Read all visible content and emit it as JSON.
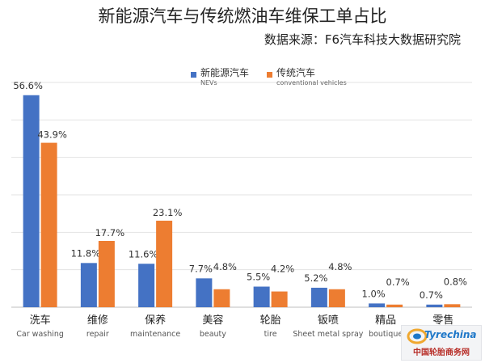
{
  "chart_data": {
    "type": "bar",
    "title": "新能源汽车与传统燃油车维保工单占比",
    "subtitle": "数据来源：F6汽车科技大数据研究院",
    "categories": [
      "洗车",
      "维修",
      "保养",
      "美容",
      "轮胎",
      "钣喷",
      "精品",
      "零售"
    ],
    "categories_en": [
      "Car washing",
      "repair",
      "maintenance",
      "beauty",
      "tire",
      "Sheet metal spray",
      "boutique",
      ""
    ],
    "series": [
      {
        "name": "新能源汽车",
        "name_en": "NEVs",
        "color": "#4472c4",
        "values": [
          56.6,
          11.8,
          11.6,
          7.7,
          5.5,
          5.2,
          1.0,
          0.7
        ]
      },
      {
        "name": "传统汽车",
        "name_en": "conventional vehicles",
        "color": "#ed7d31",
        "values": [
          43.9,
          17.7,
          23.1,
          4.8,
          4.2,
          4.8,
          0.7,
          0.8
        ]
      }
    ],
    "value_labels": [
      [
        "56.6%",
        "11.8%",
        "11.6%",
        "7.7%",
        "5.5%",
        "5.2%",
        "1.0%",
        "0.7%"
      ],
      [
        "43.9%",
        "17.7%",
        "23.1%",
        "4.8%",
        "4.2%",
        "4.8%",
        "0.7%",
        "0.8%"
      ]
    ],
    "ylim": [
      0,
      60
    ],
    "grid": true,
    "legend_position": "top"
  },
  "watermark": {
    "logo_text": "Tyrechina",
    "cn_text": "中国轮胎商务网"
  }
}
